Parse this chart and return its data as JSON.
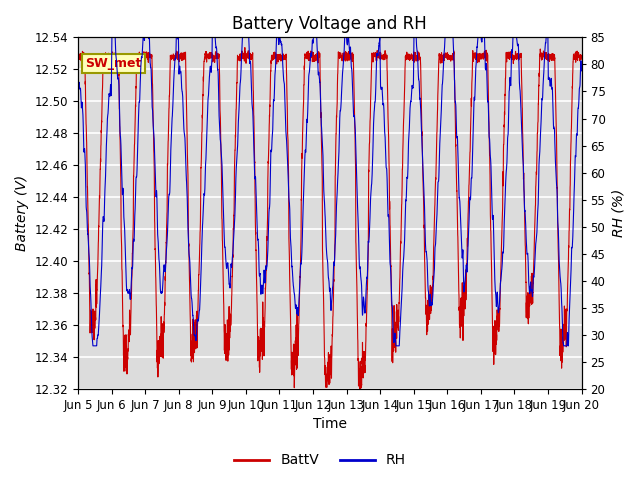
{
  "title": "Battery Voltage and RH",
  "xlabel": "Time",
  "ylabel_left": "Battery (V)",
  "ylabel_right": "RH (%)",
  "station_label": "SW_met",
  "ylim_left": [
    12.32,
    12.54
  ],
  "ylim_right": [
    20,
    85
  ],
  "yticks_left": [
    12.32,
    12.34,
    12.36,
    12.38,
    12.4,
    12.42,
    12.44,
    12.46,
    12.48,
    12.5,
    12.52,
    12.54
  ],
  "yticks_right": [
    20,
    25,
    30,
    35,
    40,
    45,
    50,
    55,
    60,
    65,
    70,
    75,
    80,
    85
  ],
  "xtick_labels": [
    "Jun 5",
    "Jun 6",
    "Jun 7",
    "Jun 8",
    "Jun 9",
    "Jun 10",
    "Jun 11",
    "Jun 12",
    "Jun 13",
    "Jun 14",
    "Jun 15",
    "Jun 16",
    "Jun 17",
    "Jun 18",
    "Jun 19",
    "Jun 20"
  ],
  "color_battv": "#cc0000",
  "color_rh": "#0000cc",
  "legend_battv": "BattV",
  "legend_rh": "RH",
  "title_fontsize": 12,
  "label_fontsize": 10,
  "tick_fontsize": 8.5,
  "figsize": [
    6.4,
    4.8
  ],
  "dpi": 100
}
